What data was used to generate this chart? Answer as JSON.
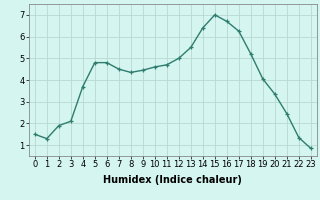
{
  "x": [
    0,
    1,
    2,
    3,
    4,
    5,
    6,
    7,
    8,
    9,
    10,
    11,
    12,
    13,
    14,
    15,
    16,
    17,
    18,
    19,
    20,
    21,
    22,
    23
  ],
  "y": [
    1.5,
    1.3,
    1.9,
    2.1,
    3.7,
    4.8,
    4.8,
    4.5,
    4.35,
    4.45,
    4.6,
    4.7,
    5.0,
    5.5,
    6.4,
    7.0,
    6.7,
    6.25,
    5.2,
    4.05,
    3.35,
    2.45,
    1.35,
    0.85
  ],
  "line_color": "#2e7d6e",
  "marker": "+",
  "markersize": 3.5,
  "linewidth": 1.0,
  "bg_color": "#d5f5f0",
  "grid_color": "#b8d8d0",
  "xlabel": "Humidex (Indice chaleur)",
  "xlabel_fontsize": 7,
  "tick_fontsize": 6,
  "xlim": [
    -0.5,
    23.5
  ],
  "ylim": [
    0.5,
    7.5
  ],
  "yticks": [
    1,
    2,
    3,
    4,
    5,
    6,
    7
  ],
  "xticks": [
    0,
    1,
    2,
    3,
    4,
    5,
    6,
    7,
    8,
    9,
    10,
    11,
    12,
    13,
    14,
    15,
    16,
    17,
    18,
    19,
    20,
    21,
    22,
    23
  ],
  "xtick_labels": [
    "0",
    "1",
    "2",
    "3",
    "4",
    "5",
    "6",
    "7",
    "8",
    "9",
    "10",
    "11",
    "12",
    "13",
    "14",
    "15",
    "16",
    "17",
    "18",
    "19",
    "20",
    "21",
    "22",
    "23"
  ]
}
